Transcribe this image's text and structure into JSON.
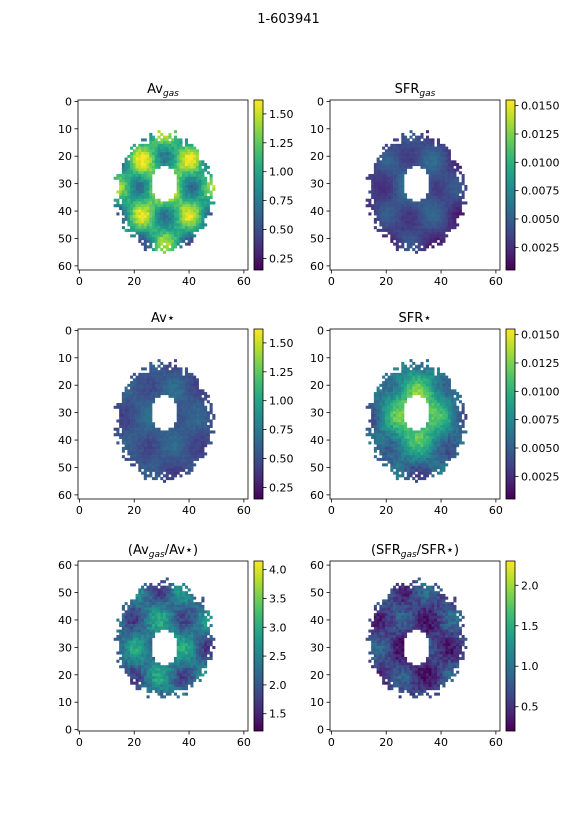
{
  "figure_title": "1-603941",
  "chart_data": [
    {
      "type": "heatmap",
      "title_main": "Av",
      "title_sub": "gas",
      "title_suffix": "",
      "x_ticks": [
        "0",
        "20",
        "40",
        "60"
      ],
      "y_ticks": [
        "0",
        "10",
        "20",
        "30",
        "40",
        "50",
        "60"
      ],
      "y_origin": "top",
      "colorbar_ticks": [
        "0.25",
        "0.50",
        "0.75",
        "1.00",
        "1.25",
        "1.50"
      ],
      "colorbar_range": [
        0.15,
        1.62
      ],
      "value_model": {
        "base": 0.95,
        "amp": 0.5,
        "inner_boost": 0.35,
        "noise": 0.2
      }
    },
    {
      "type": "heatmap",
      "title_main": "SFR",
      "title_sub": "gas",
      "title_suffix": "",
      "x_ticks": [
        "0",
        "20",
        "40",
        "60"
      ],
      "y_ticks": [
        "0",
        "10",
        "20",
        "30",
        "40",
        "50",
        "60"
      ],
      "y_origin": "top",
      "colorbar_ticks": [
        "0.0025",
        "0.0050",
        "0.0075",
        "0.0100",
        "0.0125",
        "0.0150"
      ],
      "colorbar_range": [
        0.0005,
        0.0155
      ],
      "value_model": {
        "base": 0.003,
        "amp": 0.0015,
        "inner_boost": 0.002,
        "noise": 0.0008
      }
    },
    {
      "type": "heatmap",
      "title_main": "Av",
      "title_sub": "",
      "title_suffix": "⋆",
      "x_ticks": [
        "0",
        "20",
        "40",
        "60"
      ],
      "y_ticks": [
        "0",
        "10",
        "20",
        "30",
        "40",
        "50",
        "60"
      ],
      "y_origin": "top",
      "colorbar_ticks": [
        "0.25",
        "0.50",
        "0.75",
        "1.00",
        "1.25",
        "1.50"
      ],
      "colorbar_range": [
        0.15,
        1.62
      ],
      "value_model": {
        "base": 0.5,
        "amp": 0.1,
        "inner_boost": 0.1,
        "noise": 0.1
      }
    },
    {
      "type": "heatmap",
      "title_main": "SFR",
      "title_sub": "",
      "title_suffix": "⋆",
      "x_ticks": [
        "0",
        "20",
        "40",
        "60"
      ],
      "y_ticks": [
        "0",
        "10",
        "20",
        "30",
        "40",
        "50",
        "60"
      ],
      "y_origin": "top",
      "colorbar_ticks": [
        "0.0025",
        "0.0050",
        "0.0075",
        "0.0100",
        "0.0125",
        "0.0150"
      ],
      "colorbar_range": [
        0.0005,
        0.0155
      ],
      "value_model": {
        "base": 0.0045,
        "amp": 0.002,
        "inner_boost": 0.007,
        "noise": 0.002
      }
    },
    {
      "type": "heatmap",
      "title_main": "(Av",
      "title_sub": "gas",
      "title_suffix": "/Av⋆)",
      "x_ticks": [
        "0",
        "20",
        "40",
        "60"
      ],
      "y_ticks": [
        "0",
        "10",
        "20",
        "30",
        "40",
        "50",
        "60"
      ],
      "y_origin": "bottom",
      "colorbar_ticks": [
        "1.5",
        "2.0",
        "2.5",
        "3.0",
        "3.5",
        "4.0"
      ],
      "colorbar_range": [
        1.2,
        4.15
      ],
      "value_model": {
        "base": 2.2,
        "amp": 0.6,
        "inner_boost": 0.3,
        "noise": 0.5
      }
    },
    {
      "type": "heatmap",
      "title_main": "(SFR",
      "title_sub": "gas",
      "title_suffix": "/SFR⋆)",
      "x_ticks": [
        "0",
        "20",
        "40",
        "60"
      ],
      "y_ticks": [
        "0",
        "10",
        "20",
        "30",
        "40",
        "50",
        "60"
      ],
      "y_origin": "bottom",
      "colorbar_ticks": [
        "0.5",
        "1.0",
        "1.5",
        "2.0"
      ],
      "colorbar_range": [
        0.2,
        2.3
      ],
      "value_model": {
        "base": 0.7,
        "amp": 0.3,
        "inner_boost": -0.2,
        "noise": 0.35
      }
    }
  ]
}
